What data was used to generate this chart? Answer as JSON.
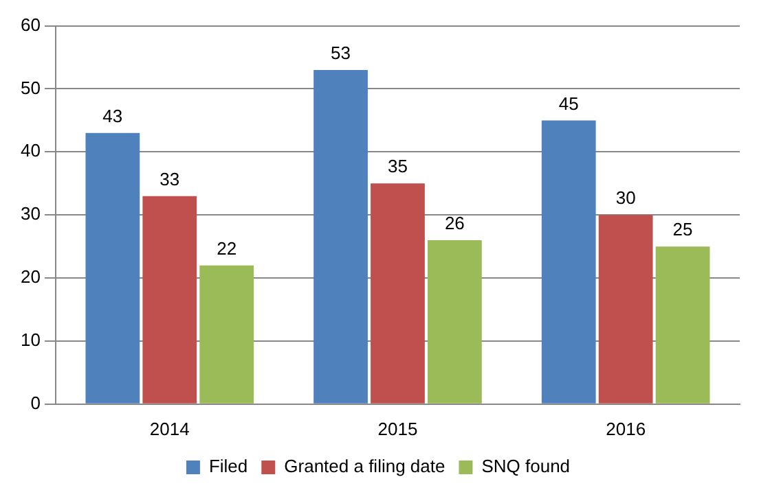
{
  "chart_data": {
    "type": "bar",
    "categories": [
      "2014",
      "2015",
      "2016"
    ],
    "series": [
      {
        "name": "Filed",
        "color": "#4f81bd",
        "values": [
          43,
          53,
          45
        ]
      },
      {
        "name": "Granted a filing date",
        "color": "#c0504d",
        "values": [
          33,
          35,
          30
        ]
      },
      {
        "name": "SNQ found",
        "color": "#9bbb59",
        "values": [
          22,
          26,
          25
        ]
      }
    ],
    "ylim": [
      0,
      60
    ],
    "yticks": [
      0,
      10,
      20,
      30,
      40,
      50,
      60
    ],
    "grid": "y",
    "legend": "bottom",
    "data_labels": true
  }
}
